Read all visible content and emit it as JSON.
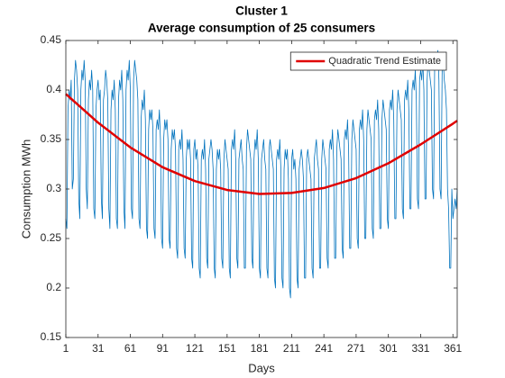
{
  "chart_data": {
    "type": "line",
    "title": "Cluster 1",
    "subtitle": "Average consumption of 25 consumers",
    "x_label": "Days",
    "y_label": "Consumption MWh",
    "xlim": [
      1,
      365
    ],
    "ylim": [
      0.15,
      0.45
    ],
    "xticks": [
      1,
      31,
      61,
      91,
      121,
      151,
      181,
      211,
      241,
      271,
      301,
      331,
      361
    ],
    "yticks": [
      0.15,
      0.2,
      0.25,
      0.3,
      0.35,
      0.4,
      0.45
    ],
    "legend": "upper right",
    "series": [
      {
        "color": "#0072bd",
        "width": 0.8,
        "x": [
          1,
          2,
          3,
          4,
          5,
          6,
          7,
          8,
          9,
          10,
          11,
          12,
          13,
          14,
          15,
          16,
          17,
          18,
          19,
          20,
          21,
          22,
          23,
          24,
          25,
          26,
          27,
          28,
          29,
          30,
          31,
          32,
          33,
          34,
          35,
          36,
          37,
          38,
          39,
          40,
          41,
          42,
          43,
          44,
          45,
          46,
          47,
          48,
          49,
          50,
          51,
          52,
          53,
          54,
          55,
          56,
          57,
          58,
          59,
          60,
          61,
          62,
          63,
          64,
          65,
          66,
          67,
          68,
          69,
          70,
          71,
          72,
          73,
          74,
          75,
          76,
          77,
          78,
          79,
          80,
          81,
          82,
          83,
          84,
          85,
          86,
          87,
          88,
          89,
          90,
          91,
          92,
          93,
          94,
          95,
          96,
          97,
          98,
          99,
          100,
          101,
          102,
          103,
          104,
          105,
          106,
          107,
          108,
          109,
          110,
          111,
          112,
          113,
          114,
          115,
          116,
          117,
          118,
          119,
          120,
          121,
          122,
          123,
          124,
          125,
          126,
          127,
          128,
          129,
          130,
          131,
          132,
          133,
          134,
          135,
          136,
          137,
          138,
          139,
          140,
          141,
          142,
          143,
          144,
          145,
          146,
          147,
          148,
          149,
          150,
          151,
          152,
          153,
          154,
          155,
          156,
          157,
          158,
          159,
          160,
          161,
          162,
          163,
          164,
          165,
          166,
          167,
          168,
          169,
          170,
          171,
          172,
          173,
          174,
          175,
          176,
          177,
          178,
          179,
          180,
          181,
          182,
          183,
          184,
          185,
          186,
          187,
          188,
          189,
          190,
          191,
          192,
          193,
          194,
          195,
          196,
          197,
          198,
          199,
          200,
          201,
          202,
          203,
          204,
          205,
          206,
          207,
          208,
          209,
          210,
          211,
          212,
          213,
          214,
          215,
          216,
          217,
          218,
          219,
          220,
          221,
          222,
          223,
          224,
          225,
          226,
          227,
          228,
          229,
          230,
          231,
          232,
          233,
          234,
          235,
          236,
          237,
          238,
          239,
          240,
          241,
          242,
          243,
          244,
          245,
          246,
          247,
          248,
          249,
          250,
          251,
          252,
          253,
          254,
          255,
          256,
          257,
          258,
          259,
          260,
          261,
          262,
          263,
          264,
          265,
          266,
          267,
          268,
          269,
          270,
          271,
          272,
          273,
          274,
          275,
          276,
          277,
          278,
          279,
          280,
          281,
          282,
          283,
          284,
          285,
          286,
          287,
          288,
          289,
          290,
          291,
          292,
          293,
          294,
          295,
          296,
          297,
          298,
          299,
          300,
          301,
          302,
          303,
          304,
          305,
          306,
          307,
          308,
          309,
          310,
          311,
          312,
          313,
          314,
          315,
          316,
          317,
          318,
          319,
          320,
          321,
          322,
          323,
          324,
          325,
          326,
          327,
          328,
          329,
          330,
          331,
          332,
          333,
          334,
          335,
          336,
          337,
          338,
          339,
          340,
          341,
          342,
          343,
          344,
          345,
          346,
          347,
          348,
          349,
          350,
          351,
          352,
          353,
          354,
          355,
          356,
          357,
          358,
          359,
          360,
          361,
          362,
          363,
          364,
          365
        ],
        "values": [
          0.27,
          0.26,
          0.38,
          0.4,
          0.39,
          0.41,
          0.3,
          0.31,
          0.41,
          0.43,
          0.42,
          0.4,
          0.29,
          0.27,
          0.4,
          0.42,
          0.41,
          0.43,
          0.41,
          0.3,
          0.28,
          0.39,
          0.41,
          0.4,
          0.42,
          0.4,
          0.28,
          0.27,
          0.38,
          0.4,
          0.41,
          0.39,
          0.4,
          0.29,
          0.27,
          0.39,
          0.4,
          0.42,
          0.41,
          0.39,
          0.28,
          0.26,
          0.38,
          0.4,
          0.39,
          0.41,
          0.38,
          0.27,
          0.26,
          0.39,
          0.41,
          0.4,
          0.42,
          0.39,
          0.28,
          0.26,
          0.4,
          0.42,
          0.41,
          0.43,
          0.4,
          0.28,
          0.27,
          0.41,
          0.43,
          0.42,
          0.41,
          0.39,
          0.27,
          0.26,
          0.37,
          0.39,
          0.38,
          0.4,
          0.37,
          0.26,
          0.25,
          0.36,
          0.38,
          0.37,
          0.38,
          0.36,
          0.26,
          0.25,
          0.36,
          0.37,
          0.36,
          0.38,
          0.35,
          0.25,
          0.24,
          0.35,
          0.37,
          0.36,
          0.37,
          0.35,
          0.25,
          0.24,
          0.34,
          0.36,
          0.35,
          0.36,
          0.34,
          0.24,
          0.23,
          0.34,
          0.35,
          0.34,
          0.36,
          0.33,
          0.24,
          0.23,
          0.33,
          0.35,
          0.34,
          0.35,
          0.33,
          0.23,
          0.22,
          0.34,
          0.35,
          0.33,
          0.34,
          0.32,
          0.22,
          0.21,
          0.33,
          0.34,
          0.33,
          0.35,
          0.32,
          0.23,
          0.22,
          0.33,
          0.34,
          0.35,
          0.34,
          0.32,
          0.22,
          0.21,
          0.32,
          0.34,
          0.33,
          0.34,
          0.32,
          0.23,
          0.22,
          0.33,
          0.35,
          0.34,
          0.33,
          0.32,
          0.22,
          0.21,
          0.34,
          0.35,
          0.34,
          0.36,
          0.33,
          0.23,
          0.22,
          0.33,
          0.34,
          0.35,
          0.33,
          0.32,
          0.22,
          0.22,
          0.34,
          0.36,
          0.35,
          0.34,
          0.33,
          0.23,
          0.22,
          0.33,
          0.35,
          0.34,
          0.36,
          0.33,
          0.22,
          0.21,
          0.33,
          0.34,
          0.35,
          0.33,
          0.32,
          0.22,
          0.21,
          0.34,
          0.35,
          0.34,
          0.33,
          0.32,
          0.21,
          0.2,
          0.33,
          0.34,
          0.33,
          0.35,
          0.32,
          0.21,
          0.2,
          0.32,
          0.34,
          0.33,
          0.34,
          0.31,
          0.2,
          0.19,
          0.33,
          0.34,
          0.32,
          0.33,
          0.31,
          0.21,
          0.2,
          0.32,
          0.33,
          0.34,
          0.33,
          0.31,
          0.21,
          0.21,
          0.33,
          0.34,
          0.33,
          0.32,
          0.31,
          0.22,
          0.21,
          0.33,
          0.34,
          0.35,
          0.33,
          0.32,
          0.22,
          0.22,
          0.33,
          0.35,
          0.34,
          0.33,
          0.32,
          0.23,
          0.22,
          0.34,
          0.35,
          0.34,
          0.36,
          0.33,
          0.23,
          0.23,
          0.34,
          0.36,
          0.35,
          0.34,
          0.33,
          0.24,
          0.23,
          0.35,
          0.36,
          0.35,
          0.37,
          0.34,
          0.24,
          0.24,
          0.35,
          0.37,
          0.36,
          0.35,
          0.34,
          0.25,
          0.24,
          0.36,
          0.37,
          0.36,
          0.38,
          0.35,
          0.25,
          0.25,
          0.36,
          0.38,
          0.37,
          0.36,
          0.35,
          0.26,
          0.25,
          0.37,
          0.38,
          0.37,
          0.39,
          0.36,
          0.26,
          0.26,
          0.37,
          0.39,
          0.38,
          0.37,
          0.36,
          0.27,
          0.26,
          0.38,
          0.39,
          0.38,
          0.4,
          0.37,
          0.27,
          0.27,
          0.38,
          0.4,
          0.39,
          0.38,
          0.37,
          0.28,
          0.27,
          0.39,
          0.4,
          0.39,
          0.41,
          0.38,
          0.28,
          0.28,
          0.4,
          0.41,
          0.4,
          0.42,
          0.39,
          0.29,
          0.28,
          0.41,
          0.42,
          0.41,
          0.43,
          0.4,
          0.29,
          0.29,
          0.41,
          0.43,
          0.42,
          0.41,
          0.4,
          0.3,
          0.29,
          0.42,
          0.43,
          0.42,
          0.44,
          0.41,
          0.3,
          0.29,
          0.42,
          0.43,
          0.41,
          0.4,
          0.38,
          0.3,
          0.28,
          0.22,
          0.22,
          0.3,
          0.27,
          0.28,
          0.29,
          0.28,
          0.3
        ]
      },
      {
        "name": "Quadratic Trend Estimate",
        "color": "#e00000",
        "width": 2.5,
        "x": [
          1,
          31,
          61,
          91,
          121,
          151,
          181,
          211,
          241,
          271,
          301,
          331,
          361,
          365
        ],
        "values": [
          0.396,
          0.367,
          0.342,
          0.322,
          0.308,
          0.299,
          0.295,
          0.296,
          0.301,
          0.311,
          0.326,
          0.345,
          0.366,
          0.369
        ]
      }
    ]
  }
}
